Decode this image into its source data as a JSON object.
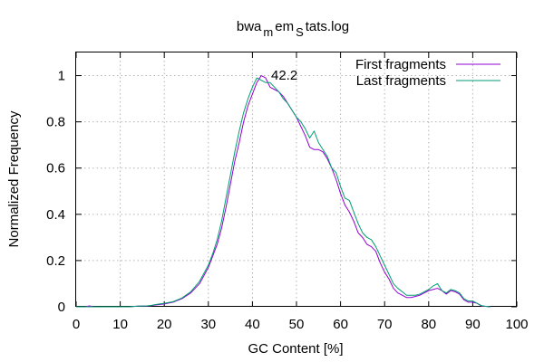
{
  "chart_data": {
    "type": "line",
    "title": "bwa_mem_Stats.log",
    "title_parts": [
      {
        "text": "bwa",
        "sub": false
      },
      {
        "text": "m",
        "sub": true
      },
      {
        "text": "em",
        "sub": false
      },
      {
        "text": "S",
        "sub": true
      },
      {
        "text": "tats.log",
        "sub": false
      }
    ],
    "xlabel": "GC Content [%]",
    "ylabel": "Normalized Frequency",
    "xlim": [
      0,
      100
    ],
    "ylim": [
      0,
      1.1
    ],
    "x_ticks": [
      0,
      10,
      20,
      30,
      40,
      50,
      60,
      70,
      80,
      90,
      100
    ],
    "y_ticks": [
      0,
      0.2,
      0.4,
      0.6,
      0.8,
      1
    ],
    "x_tick_labels": [
      "0",
      "10",
      "20",
      "30",
      "40",
      "50",
      "60",
      "70",
      "80",
      "90",
      "100"
    ],
    "y_tick_labels": [
      "0",
      "0.2",
      "0.4",
      "0.6",
      "0.8",
      "1"
    ],
    "grid": true,
    "legend_position": "top-right",
    "annotation": {
      "text": "42.2",
      "x": 42.2,
      "y": 1.0
    },
    "series": [
      {
        "name": "First fragments",
        "color": "#9400d3",
        "points": [
          [
            0,
            0
          ],
          [
            2,
            0
          ],
          [
            3,
            0.004
          ],
          [
            4,
            0
          ],
          [
            8,
            0
          ],
          [
            12,
            0
          ],
          [
            14,
            0.003
          ],
          [
            16,
            0.003
          ],
          [
            17,
            0.005
          ],
          [
            18,
            0.008
          ],
          [
            20,
            0.012
          ],
          [
            22,
            0.02
          ],
          [
            24,
            0.035
          ],
          [
            26,
            0.06
          ],
          [
            28,
            0.1
          ],
          [
            30,
            0.17
          ],
          [
            31,
            0.22
          ],
          [
            32,
            0.27
          ],
          [
            33,
            0.34
          ],
          [
            34,
            0.43
          ],
          [
            35,
            0.53
          ],
          [
            36,
            0.63
          ],
          [
            37,
            0.71
          ],
          [
            38,
            0.8
          ],
          [
            39,
            0.87
          ],
          [
            40,
            0.92
          ],
          [
            41,
            0.97
          ],
          [
            42,
            1.0
          ],
          [
            43,
            0.99
          ],
          [
            44,
            0.95
          ],
          [
            45,
            0.94
          ],
          [
            46,
            0.93
          ],
          [
            47,
            0.91
          ],
          [
            48,
            0.88
          ],
          [
            49,
            0.85
          ],
          [
            50,
            0.82
          ],
          [
            51,
            0.78
          ],
          [
            52,
            0.74
          ],
          [
            53,
            0.69
          ],
          [
            54,
            0.68
          ],
          [
            55,
            0.68
          ],
          [
            56,
            0.67
          ],
          [
            57,
            0.64
          ],
          [
            58,
            0.6
          ],
          [
            59,
            0.55
          ],
          [
            60,
            0.49
          ],
          [
            61,
            0.44
          ],
          [
            62,
            0.41
          ],
          [
            63,
            0.37
          ],
          [
            64,
            0.32
          ],
          [
            65,
            0.3
          ],
          [
            66,
            0.27
          ],
          [
            67,
            0.26
          ],
          [
            68,
            0.24
          ],
          [
            69,
            0.19
          ],
          [
            70,
            0.15
          ],
          [
            71,
            0.12
          ],
          [
            72,
            0.08
          ],
          [
            73,
            0.06
          ],
          [
            74,
            0.05
          ],
          [
            75,
            0.04
          ],
          [
            76,
            0.04
          ],
          [
            77,
            0.045
          ],
          [
            78,
            0.05
          ],
          [
            79,
            0.06
          ],
          [
            80,
            0.07
          ],
          [
            81,
            0.075
          ],
          [
            82,
            0.08
          ],
          [
            83,
            0.07
          ],
          [
            84,
            0.055
          ],
          [
            85,
            0.07
          ],
          [
            86,
            0.065
          ],
          [
            87,
            0.055
          ],
          [
            88,
            0.03
          ],
          [
            89,
            0.02
          ],
          [
            90,
            0.02
          ],
          [
            91,
            0.015
          ],
          [
            92,
            0.003
          ],
          [
            93,
            0.002
          ],
          [
            94,
            0
          ]
        ]
      },
      {
        "name": "Last fragments",
        "color": "#009e73",
        "points": [
          [
            0,
            0
          ],
          [
            2,
            0
          ],
          [
            4,
            0
          ],
          [
            8,
            0
          ],
          [
            12,
            0
          ],
          [
            14,
            0.003
          ],
          [
            16,
            0.004
          ],
          [
            17,
            0.006
          ],
          [
            18,
            0.01
          ],
          [
            20,
            0.015
          ],
          [
            22,
            0.022
          ],
          [
            24,
            0.038
          ],
          [
            26,
            0.065
          ],
          [
            28,
            0.11
          ],
          [
            30,
            0.18
          ],
          [
            31,
            0.23
          ],
          [
            32,
            0.29
          ],
          [
            33,
            0.37
          ],
          [
            34,
            0.47
          ],
          [
            35,
            0.57
          ],
          [
            36,
            0.67
          ],
          [
            37,
            0.76
          ],
          [
            38,
            0.84
          ],
          [
            39,
            0.9
          ],
          [
            40,
            0.95
          ],
          [
            41,
            0.99
          ],
          [
            42,
            0.98
          ],
          [
            43,
            0.97
          ],
          [
            44,
            0.97
          ],
          [
            45,
            0.95
          ],
          [
            46,
            0.93
          ],
          [
            47,
            0.9
          ],
          [
            48,
            0.88
          ],
          [
            49,
            0.85
          ],
          [
            50,
            0.82
          ],
          [
            51,
            0.8
          ],
          [
            52,
            0.77
          ],
          [
            53,
            0.73
          ],
          [
            54,
            0.76
          ],
          [
            55,
            0.71
          ],
          [
            56,
            0.68
          ],
          [
            57,
            0.65
          ],
          [
            58,
            0.6
          ],
          [
            59,
            0.58
          ],
          [
            60,
            0.52
          ],
          [
            61,
            0.47
          ],
          [
            62,
            0.46
          ],
          [
            63,
            0.41
          ],
          [
            64,
            0.36
          ],
          [
            65,
            0.32
          ],
          [
            66,
            0.3
          ],
          [
            67,
            0.29
          ],
          [
            68,
            0.26
          ],
          [
            69,
            0.22
          ],
          [
            70,
            0.18
          ],
          [
            71,
            0.14
          ],
          [
            72,
            0.1
          ],
          [
            73,
            0.08
          ],
          [
            74,
            0.065
          ],
          [
            75,
            0.05
          ],
          [
            76,
            0.05
          ],
          [
            77,
            0.05
          ],
          [
            78,
            0.055
          ],
          [
            79,
            0.065
          ],
          [
            80,
            0.075
          ],
          [
            81,
            0.09
          ],
          [
            82,
            0.1
          ],
          [
            83,
            0.07
          ],
          [
            84,
            0.06
          ],
          [
            85,
            0.075
          ],
          [
            86,
            0.07
          ],
          [
            87,
            0.06
          ],
          [
            88,
            0.035
          ],
          [
            89,
            0.025
          ],
          [
            90,
            0.025
          ],
          [
            91,
            0.015
          ],
          [
            92,
            0.005
          ],
          [
            93,
            0.002
          ],
          [
            94,
            0
          ]
        ]
      }
    ]
  }
}
